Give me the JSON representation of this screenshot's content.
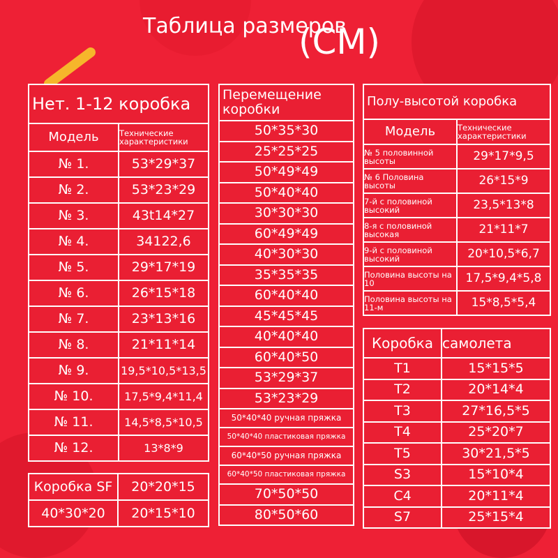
{
  "title": "Таблица размеров",
  "unit": "(CM)",
  "left": {
    "header": "Нет. 1-12 коробка",
    "col1": "Модель",
    "col2": "Технические характеристики",
    "rows": [
      [
        "№ 1.",
        "53*29*37"
      ],
      [
        "№ 2.",
        "53*23*29"
      ],
      [
        "№ 3.",
        "43t14*27"
      ],
      [
        "№ 4.",
        "34122,6"
      ],
      [
        "№ 5.",
        "29*17*19"
      ],
      [
        "№ 6.",
        "26*15*18"
      ],
      [
        "№ 7.",
        "23*13*16"
      ],
      [
        "№ 8.",
        "21*11*14"
      ],
      [
        "№ 9.",
        "19,5*10,5*13,5"
      ],
      [
        "№ 10.",
        "17,5*9,4*11,4"
      ],
      [
        "№ 11.",
        "14,5*8,5*10,5"
      ],
      [
        "№ 12.",
        "13*8*9"
      ]
    ]
  },
  "sf": {
    "label": "Коробка SF",
    "rows": [
      [
        "",
        "20*20*15"
      ],
      [
        "40*30*20",
        "20*15*10"
      ]
    ]
  },
  "middle": {
    "header": "Перемещение коробки",
    "rows": [
      "50*35*30",
      "25*25*25",
      "50*49*49",
      "50*40*40",
      "30*30*30",
      "60*49*49",
      "40*30*30",
      "35*35*35",
      "60*40*40",
      "45*45*45",
      "40*40*40",
      "60*40*50",
      "53*29*37",
      "53*23*29",
      "50*40*40 ручная пряжка",
      "50*40*40 пластиковая пряжка",
      "60*40*50 ручная пряжка",
      "60*40*50 пластиковая пряжка",
      "70*50*50",
      "80*50*60"
    ]
  },
  "half": {
    "header": "Полу-высотой коробка",
    "col1": "Модель",
    "col2": "Технические характеристики",
    "rows": [
      [
        "№ 5 половинной высоты",
        "29*17*9,5"
      ],
      [
        "№ 6 Половина высоты",
        "26*15*9"
      ],
      [
        "7-й с половиной высокий",
        "23,5*13*8"
      ],
      [
        "8-я с половиной высокая",
        "21*11*7"
      ],
      [
        "9-й с половиной высокий",
        "20*10,5*6,7"
      ],
      [
        "Половина высоты на 10",
        "17,5*9,4*5,8"
      ],
      [
        "Половина высоты на 11-м",
        "15*8,5*5,4"
      ]
    ]
  },
  "plane": {
    "col1": "Коробка",
    "col2": "самолета",
    "rows": [
      [
        "T1",
        "15*15*5"
      ],
      [
        "T2",
        "20*14*4"
      ],
      [
        "T3",
        "27*16,5*5"
      ],
      [
        "T4",
        "25*20*7"
      ],
      [
        "T5",
        "30*21,5*5"
      ],
      [
        "S3",
        "15*10*4"
      ],
      [
        "C4",
        "20*11*4"
      ],
      [
        "S7",
        "25*15*4"
      ]
    ]
  }
}
